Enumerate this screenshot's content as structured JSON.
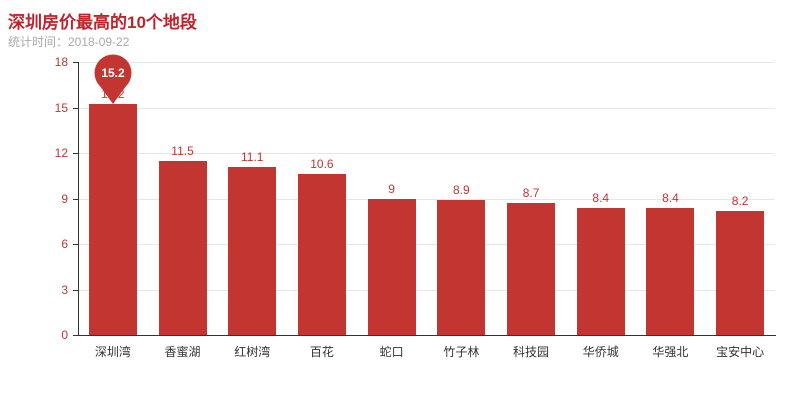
{
  "chart_data": {
    "type": "bar",
    "title": "深圳房价最高的10个地段",
    "subtitle": "统计时间：2018-09-22",
    "categories": [
      "深圳湾",
      "香蜜湖",
      "红树湾",
      "百花",
      "蛇口",
      "竹子林",
      "科技园",
      "华侨城",
      "华强北",
      "宝安中心"
    ],
    "values": [
      15.2,
      11.5,
      11.1,
      10.6,
      9,
      8.9,
      8.7,
      8.4,
      8.4,
      8.2
    ],
    "value_labels": [
      "15.2",
      "11.5",
      "11.1",
      "10.6",
      "9",
      "8.9",
      "8.7",
      "8.4",
      "8.4",
      "8.2"
    ],
    "xlabel": "",
    "ylabel": "",
    "ylim": [
      0,
      18
    ],
    "yticks": [
      0,
      3,
      6,
      9,
      12,
      15,
      18
    ],
    "grid": true,
    "legend_position": "none",
    "mark_point": {
      "type": "max",
      "label": "15.2",
      "category": "深圳湾"
    },
    "colors": {
      "bar": "#c23531",
      "pin": "#c23531",
      "title": "#c1232b",
      "subtitle": "#aaaaaa",
      "value_label": "#c23531",
      "y_axis_label": "#c23531",
      "category_label": "#333333"
    }
  }
}
